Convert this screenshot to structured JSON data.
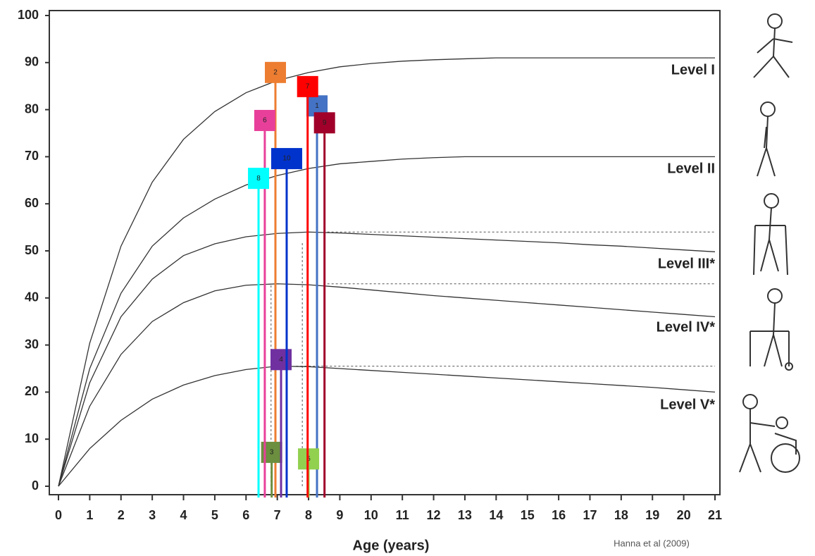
{
  "chart_data": {
    "type": "line",
    "x_label": "Age (years)",
    "source": "Hanna et al (2009)",
    "x": [
      0,
      1,
      2,
      3,
      4,
      5,
      6,
      7,
      8,
      9,
      10,
      11,
      12,
      13,
      14,
      15,
      16,
      17,
      18,
      19,
      20,
      21
    ],
    "series": [
      {
        "name": "Level I",
        "color": "#333333",
        "values": [
          0,
          30.4,
          51,
          64.6,
          73.7,
          79.6,
          83.6,
          86.2,
          87.9,
          89.1,
          89.8,
          90.3,
          90.6,
          90.8,
          91,
          91,
          91,
          91,
          91,
          91,
          91,
          91
        ]
      },
      {
        "name": "Level II",
        "color": "#333333",
        "values": [
          0,
          25,
          41,
          51,
          57,
          61,
          64,
          66,
          67.5,
          68.5,
          69,
          69.5,
          69.8,
          70,
          70,
          70,
          70,
          70,
          70,
          70,
          70,
          70
        ]
      },
      {
        "name": "Level III*",
        "color": "#333333",
        "values": [
          0,
          22,
          36,
          44,
          49,
          51.5,
          53,
          53.7,
          54,
          53.8,
          53.5,
          53.2,
          52.9,
          52.6,
          52.3,
          52,
          51.7,
          51.3,
          51,
          50.6,
          50.2,
          49.8
        ]
      },
      {
        "name": "Level IV*",
        "color": "#333333",
        "values": [
          0,
          17,
          28,
          35,
          39,
          41.5,
          42.7,
          43,
          42.8,
          42.3,
          41.7,
          41.1,
          40.5,
          40,
          39.5,
          39,
          38.5,
          38,
          37.5,
          37,
          36.5,
          36
        ]
      },
      {
        "name": "Level V*",
        "color": "#333333",
        "values": [
          0,
          8,
          14,
          18.5,
          21.5,
          23.5,
          24.8,
          25.5,
          25.4,
          25,
          24.6,
          24.2,
          23.8,
          23.4,
          23,
          22.6,
          22.2,
          21.8,
          21.4,
          21,
          20.5,
          20
        ]
      }
    ],
    "reference_lines": [
      {
        "y": 54,
        "x": [
          8.6,
          21
        ]
      },
      {
        "y": 43,
        "x": [
          8.6,
          21
        ]
      },
      {
        "y": 25.5,
        "x": [
          7.6,
          21
        ]
      },
      {
        "x": 6.8,
        "y": [
          0,
          43
        ]
      },
      {
        "x": 7.8,
        "y": [
          0,
          52
        ]
      }
    ],
    "markers": [
      {
        "name": "1",
        "x": 8.27,
        "y": 80.8,
        "color": "#4472c4"
      },
      {
        "name": "2",
        "x": 6.94,
        "y": 87.9,
        "color": "#ed7d31"
      },
      {
        "name": "3",
        "x": 6.82,
        "y": 7.2,
        "color": "#6b8e3f"
      },
      {
        "name": "4",
        "x": 7.12,
        "y": 26.9,
        "color": "#7030a0"
      },
      {
        "name": "5",
        "x": 8.0,
        "y": 5.8,
        "color": "#92d050"
      },
      {
        "name": "6",
        "x": 6.6,
        "y": 77.7,
        "color": "#e8409a"
      },
      {
        "name": "7",
        "x": 7.97,
        "y": 84.9,
        "color": "#ff0000"
      },
      {
        "name": "8",
        "x": 6.4,
        "y": 65.4,
        "color": "#00ffff"
      },
      {
        "name": "9",
        "x": 8.51,
        "y": 77.2,
        "color": "#a0002a"
      },
      {
        "name": "10",
        "x": 7.3,
        "y": 69.6,
        "color": "#0033cc"
      }
    ],
    "xlim": [
      0,
      21
    ],
    "ylim": [
      0,
      100
    ],
    "xticks": [
      0,
      1,
      2,
      3,
      4,
      5,
      6,
      7,
      8,
      9,
      10,
      11,
      12,
      13,
      14,
      15,
      16,
      17,
      18,
      19,
      20,
      21
    ],
    "yticks": [
      0,
      10,
      20,
      30,
      40,
      50,
      60,
      70,
      80,
      90,
      100
    ]
  }
}
